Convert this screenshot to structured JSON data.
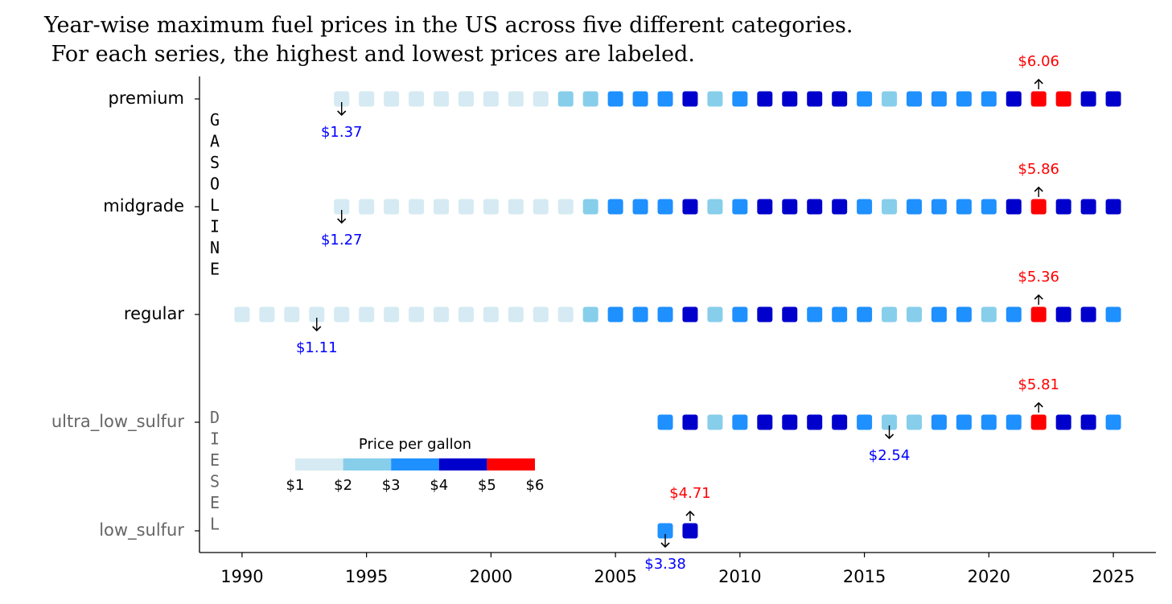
{
  "chart_data": {
    "type": "tile",
    "title": "Year-wise maximum fuel prices in the US across five different categories.\n For each series, the highest and lowest prices are labeled.",
    "x": [
      1990,
      1991,
      1992,
      1993,
      1994,
      1995,
      1996,
      1997,
      1998,
      1999,
      2000,
      2001,
      2002,
      2003,
      2004,
      2005,
      2006,
      2007,
      2008,
      2009,
      2010,
      2011,
      2012,
      2013,
      2014,
      2015,
      2016,
      2017,
      2018,
      2019,
      2020,
      2021,
      2022,
      2023,
      2024,
      2025
    ],
    "xlim": [
      1988.29,
      2026.71
    ],
    "xticks": [
      1990,
      1995,
      2000,
      2005,
      2010,
      2015,
      2020,
      2025
    ],
    "rows": [
      {
        "name": "premium",
        "values": [
          null,
          null,
          null,
          null,
          1.37,
          1.5,
          1.5,
          1.5,
          1.5,
          1.5,
          1.5,
          1.5,
          1.5,
          2.5,
          2.5,
          3.5,
          3.5,
          3.5,
          4.5,
          2.5,
          3.5,
          4.5,
          4.5,
          4.5,
          4.5,
          3.5,
          2.5,
          3.5,
          3.5,
          3.5,
          3.5,
          4.5,
          6.06,
          5.5,
          4.5,
          4.5
        ],
        "value_labels": [
          null,
          null,
          null,
          null,
          "$1.37",
          null,
          null,
          null,
          null,
          null,
          null,
          null,
          null,
          null,
          null,
          null,
          null,
          null,
          null,
          null,
          null,
          null,
          null,
          null,
          null,
          null,
          null,
          null,
          null,
          null,
          null,
          null,
          "$6.06",
          null,
          null,
          null
        ]
      },
      {
        "name": "midgrade",
        "values": [
          null,
          null,
          null,
          null,
          1.27,
          1.5,
          1.5,
          1.5,
          1.5,
          1.5,
          1.5,
          1.5,
          1.5,
          1.5,
          2.5,
          3.5,
          3.5,
          3.5,
          4.5,
          2.5,
          3.5,
          4.5,
          4.5,
          4.5,
          4.5,
          3.5,
          2.5,
          3.5,
          3.5,
          3.5,
          3.5,
          4.5,
          5.86,
          4.5,
          4.5,
          4.5
        ],
        "value_labels": [
          null,
          null,
          null,
          null,
          "$1.27",
          null,
          null,
          null,
          null,
          null,
          null,
          null,
          null,
          null,
          null,
          null,
          null,
          null,
          null,
          null,
          null,
          null,
          null,
          null,
          null,
          null,
          null,
          null,
          null,
          null,
          null,
          null,
          "$5.86",
          null,
          null,
          null
        ]
      },
      {
        "name": "regular",
        "values": [
          1.5,
          1.5,
          1.5,
          1.11,
          1.5,
          1.5,
          1.5,
          1.5,
          1.5,
          1.5,
          1.5,
          1.5,
          1.5,
          1.5,
          2.5,
          3.5,
          3.5,
          3.5,
          4.5,
          2.5,
          3.5,
          4.5,
          4.5,
          3.5,
          3.5,
          3.5,
          2.5,
          2.5,
          3.5,
          3.5,
          2.5,
          3.5,
          5.36,
          4.5,
          4.5,
          3.5
        ],
        "value_labels": [
          null,
          null,
          null,
          "$1.11",
          null,
          null,
          null,
          null,
          null,
          null,
          null,
          null,
          null,
          null,
          null,
          null,
          null,
          null,
          null,
          null,
          null,
          null,
          null,
          null,
          null,
          null,
          null,
          null,
          null,
          null,
          null,
          null,
          "$5.36",
          null,
          null,
          null
        ]
      },
      {
        "name": "ultra_low_sulfur",
        "values": [
          null,
          null,
          null,
          null,
          null,
          null,
          null,
          null,
          null,
          null,
          null,
          null,
          null,
          null,
          null,
          null,
          null,
          3.5,
          4.5,
          2.8,
          3.5,
          4.5,
          4.5,
          4.5,
          4.5,
          3.5,
          2.54,
          2.8,
          3.5,
          3.5,
          3.5,
          3.5,
          5.81,
          4.5,
          4.5,
          3.5
        ],
        "value_labels": [
          null,
          null,
          null,
          null,
          null,
          null,
          null,
          null,
          null,
          null,
          null,
          null,
          null,
          null,
          null,
          null,
          null,
          null,
          null,
          null,
          null,
          null,
          null,
          null,
          null,
          null,
          "$2.54",
          null,
          null,
          null,
          null,
          null,
          "$5.81",
          null,
          null,
          null
        ]
      },
      {
        "name": "low_sulfur",
        "values": [
          null,
          null,
          null,
          null,
          null,
          null,
          null,
          null,
          null,
          null,
          null,
          null,
          null,
          null,
          null,
          null,
          null,
          3.38,
          4.71,
          null,
          null,
          null,
          null,
          null,
          null,
          null,
          null,
          null,
          null,
          null,
          null,
          null,
          null,
          null,
          null,
          null
        ],
        "value_labels": [
          null,
          null,
          null,
          null,
          null,
          null,
          null,
          null,
          null,
          null,
          null,
          null,
          null,
          null,
          null,
          null,
          null,
          "$3.38",
          "$4.71",
          null,
          null,
          null,
          null,
          null,
          null,
          null,
          null,
          null,
          null,
          null,
          null,
          null,
          null,
          null,
          null,
          null
        ]
      }
    ],
    "groups": [
      {
        "label": "GASOLINE"
      },
      {
        "label": "DIESEL"
      }
    ],
    "color_scale": {
      "title": "Price per gallon",
      "bins": [
        {
          "value": 1,
          "label": "$1"
        },
        {
          "value": 2,
          "label": "$2"
        },
        {
          "value": 3,
          "label": "$3"
        },
        {
          "value": 4,
          "label": "$4"
        },
        {
          "value": 5,
          "label": "$5"
        },
        {
          "value": 6,
          "label": "$6"
        }
      ],
      "colors": [
        "#d5eaf2",
        "#87ceeb",
        "#1e90ff",
        "#0000cd",
        "#ff0000"
      ]
    },
    "max_label_color": "#ff0000",
    "min_label_color": "#0000ff"
  }
}
